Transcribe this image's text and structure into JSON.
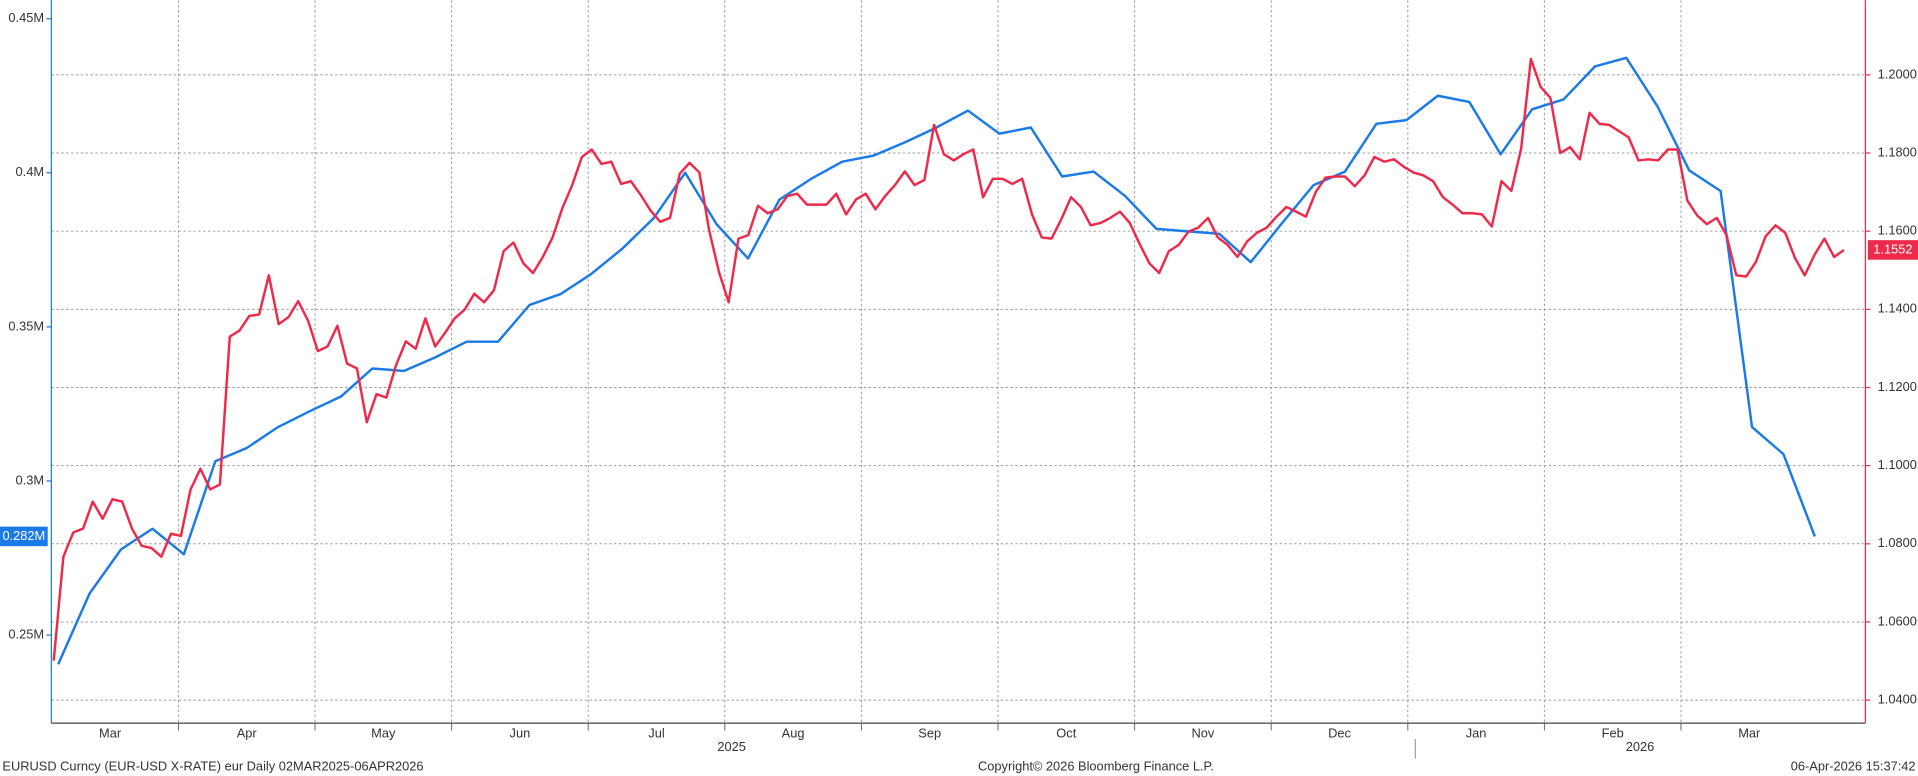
{
  "chart_data": {
    "type": "line",
    "xlim": [
      0.07,
      13.35
    ],
    "xticks": [
      {
        "value": 0,
        "label": "Mar"
      },
      {
        "value": 1,
        "label": "Apr"
      },
      {
        "value": 2,
        "label": "May"
      },
      {
        "value": 3,
        "label": "Jun"
      },
      {
        "value": 4,
        "label": "Jul"
      },
      {
        "value": 5,
        "label": "Aug"
      },
      {
        "value": 6,
        "label": "Sep"
      },
      {
        "value": 7,
        "label": "Oct"
      },
      {
        "value": 8,
        "label": "Nov"
      },
      {
        "value": 9,
        "label": "Dec"
      },
      {
        "value": 10,
        "label": "Jan"
      },
      {
        "value": 11,
        "label": "Feb"
      },
      {
        "value": 12,
        "label": "Mar"
      }
    ],
    "x_year_labels": [
      {
        "value": 5.05,
        "label": "2025"
      },
      {
        "value": 11.7,
        "label": "2026"
      }
    ],
    "ylim": [
      221400,
      456000
    ],
    "yticks": [
      {
        "value": 250000,
        "label": "0.25M"
      },
      {
        "value": 300000,
        "label": "0.3M"
      },
      {
        "value": 350000,
        "label": "0.35M"
      },
      {
        "value": 400000,
        "label": "0.4M"
      },
      {
        "value": 450000,
        "label": "0.45M"
      }
    ],
    "y2lim": [
      1.0341,
      1.2191
    ],
    "y2ticks": [
      {
        "value": 1.04,
        "label": "1.0400"
      },
      {
        "value": 1.06,
        "label": "1.0600"
      },
      {
        "value": 1.08,
        "label": "1.0800"
      },
      {
        "value": 1.1,
        "label": "1.1000"
      },
      {
        "value": 1.12,
        "label": "1.1200"
      },
      {
        "value": 1.14,
        "label": "1.1400"
      },
      {
        "value": 1.16,
        "label": "1.1600"
      },
      {
        "value": 1.18,
        "label": "1.1800"
      },
      {
        "value": 1.2,
        "label": "1.2000"
      }
    ],
    "grid": true,
    "series": [
      {
        "color": "#1a7ae8",
        "axis": "y",
        "last_value_label": "0.282M",
        "x": [
          0.12,
          0.35,
          0.58,
          0.81,
          1.04,
          1.27,
          1.5,
          1.73,
          1.96,
          2.19,
          2.42,
          2.65,
          2.88,
          3.11,
          3.34,
          3.57,
          3.8,
          4.02,
          4.25,
          4.48,
          4.71,
          4.94,
          5.17,
          5.4,
          5.63,
          5.86,
          6.09,
          6.32,
          6.55,
          6.78,
          7.01,
          7.24,
          7.47,
          7.7,
          7.93,
          8.16,
          8.39,
          8.62,
          8.85,
          9.08,
          9.31,
          9.54,
          9.77,
          9.99,
          10.22,
          10.45,
          10.68,
          10.91,
          11.14,
          11.37,
          11.6,
          11.83,
          12.06,
          12.29,
          12.52,
          12.75,
          12.98
        ],
        "values": [
          240500,
          263500,
          277800,
          284500,
          276200,
          306400,
          310700,
          317500,
          322600,
          327400,
          336500,
          335700,
          340100,
          345200,
          345200,
          357100,
          360700,
          367100,
          375400,
          385300,
          400000,
          383300,
          372200,
          391300,
          398000,
          403600,
          405600,
          409900,
          414700,
          420200,
          412700,
          414700,
          398800,
          400400,
          392500,
          381800,
          381000,
          380200,
          371000,
          383700,
          396000,
          400400,
          415900,
          417100,
          425000,
          423000,
          406000,
          420600,
          423800,
          434500,
          437300,
          421400,
          400800,
          394100,
          317500,
          308700,
          282000
        ]
      },
      {
        "color": "#ee2a4a",
        "axis": "y2",
        "last_value_label": "1.1552",
        "x": [
          0.087,
          0.158,
          0.23,
          0.302,
          0.373,
          0.445,
          0.517,
          0.588,
          0.66,
          0.731,
          0.803,
          0.875,
          0.946,
          1.018,
          1.089,
          1.161,
          1.233,
          1.304,
          1.376,
          1.448,
          1.519,
          1.591,
          1.662,
          1.734,
          1.806,
          1.877,
          1.949,
          2.021,
          2.092,
          2.164,
          2.235,
          2.307,
          2.379,
          2.45,
          2.522,
          2.594,
          2.665,
          2.737,
          2.808,
          2.88,
          2.952,
          3.023,
          3.095,
          3.166,
          3.238,
          3.31,
          3.381,
          3.453,
          3.525,
          3.596,
          3.668,
          3.739,
          3.811,
          3.883,
          3.954,
          4.026,
          4.097,
          4.169,
          4.241,
          4.312,
          4.384,
          4.456,
          4.527,
          4.599,
          4.67,
          4.742,
          4.814,
          4.885,
          4.957,
          5.028,
          5.1,
          5.172,
          5.243,
          5.315,
          5.387,
          5.458,
          5.53,
          5.601,
          5.673,
          5.745,
          5.816,
          5.888,
          5.96,
          6.031,
          6.103,
          6.174,
          6.246,
          6.318,
          6.389,
          6.461,
          6.532,
          6.604,
          6.676,
          6.747,
          6.819,
          6.891,
          6.962,
          7.034,
          7.105,
          7.177,
          7.249,
          7.32,
          7.392,
          7.464,
          7.535,
          7.607,
          7.678,
          7.75,
          7.822,
          7.893,
          7.965,
          8.036,
          8.108,
          8.18,
          8.251,
          8.323,
          8.395,
          8.466,
          8.538,
          8.609,
          8.681,
          8.753,
          8.824,
          8.896,
          8.967,
          9.039,
          9.111,
          9.182,
          9.254,
          9.326,
          9.397,
          9.469,
          9.54,
          9.612,
          9.684,
          9.755,
          9.827,
          9.898,
          9.97,
          10.042,
          10.113,
          10.185,
          10.257,
          10.328,
          10.4,
          10.471,
          10.543,
          10.615,
          10.686,
          10.758,
          10.83,
          10.901,
          10.973,
          11.044,
          11.116,
          11.188,
          11.259,
          11.331,
          11.402,
          11.474,
          11.546,
          11.617,
          11.689,
          11.761,
          11.832,
          11.904,
          11.975,
          12.047,
          12.119,
          12.19,
          12.262,
          12.333,
          12.405,
          12.477,
          12.548,
          12.62,
          12.692,
          12.763,
          12.835,
          12.906,
          12.978,
          13.05,
          13.121,
          13.193
        ],
        "values": [
          1.0501,
          1.0767,
          1.0829,
          1.0839,
          1.0908,
          1.0864,
          1.0914,
          1.0908,
          1.0839,
          1.0795,
          1.0789,
          1.0767,
          1.0826,
          1.082,
          1.0939,
          1.0992,
          1.0939,
          1.0952,
          1.133,
          1.1346,
          1.1383,
          1.1387,
          1.1487,
          1.1362,
          1.138,
          1.1421,
          1.1371,
          1.1293,
          1.1305,
          1.1358,
          1.1261,
          1.1249,
          1.1111,
          1.1183,
          1.1174,
          1.1258,
          1.1318,
          1.1299,
          1.1377,
          1.1305,
          1.134,
          1.1377,
          1.1399,
          1.144,
          1.1418,
          1.1449,
          1.1549,
          1.1571,
          1.1518,
          1.1493,
          1.1534,
          1.1584,
          1.1659,
          1.1718,
          1.179,
          1.1809,
          1.1772,
          1.1778,
          1.1721,
          1.1728,
          1.1693,
          1.1653,
          1.1624,
          1.1634,
          1.1747,
          1.1775,
          1.175,
          1.1603,
          1.1496,
          1.1418,
          1.1581,
          1.159,
          1.1665,
          1.1646,
          1.1656,
          1.169,
          1.1696,
          1.1668,
          1.1668,
          1.1668,
          1.1696,
          1.1643,
          1.1681,
          1.1696,
          1.1656,
          1.169,
          1.1718,
          1.1753,
          1.1718,
          1.1731,
          1.1872,
          1.1797,
          1.1781,
          1.1797,
          1.1809,
          1.1687,
          1.1734,
          1.1734,
          1.1721,
          1.1734,
          1.1643,
          1.1584,
          1.1581,
          1.1631,
          1.1687,
          1.1662,
          1.1615,
          1.1621,
          1.1634,
          1.165,
          1.1621,
          1.1568,
          1.1518,
          1.1493,
          1.1549,
          1.1565,
          1.1599,
          1.1609,
          1.1634,
          1.1584,
          1.1565,
          1.1534,
          1.1574,
          1.1596,
          1.1609,
          1.1637,
          1.1662,
          1.165,
          1.1637,
          1.17,
          1.1737,
          1.174,
          1.174,
          1.1715,
          1.1743,
          1.179,
          1.1778,
          1.1784,
          1.1765,
          1.175,
          1.1743,
          1.1728,
          1.1687,
          1.1668,
          1.1646,
          1.1646,
          1.1643,
          1.1612,
          1.1728,
          1.1703,
          1.1812,
          1.2041,
          1.1969,
          1.1941,
          1.18,
          1.1815,
          1.1784,
          1.1903,
          1.1875,
          1.1872,
          1.1856,
          1.184,
          1.1781,
          1.1784,
          1.1781,
          1.1809,
          1.1809,
          1.1678,
          1.164,
          1.1618,
          1.1634,
          1.159,
          1.1487,
          1.1484,
          1.1521,
          1.1587,
          1.1615,
          1.1596,
          1.1531,
          1.1487,
          1.154,
          1.1581,
          1.1534,
          1.1552
        ]
      }
    ],
    "footer": {
      "left": "EURUSD Curncy (EUR-USD X-RATE) eur Daily 02MAR2025-06APR2026",
      "center": "Copyright© 2026 Bloomberg Finance L.P.",
      "right": "06-Apr-2026 15:37:42"
    }
  }
}
